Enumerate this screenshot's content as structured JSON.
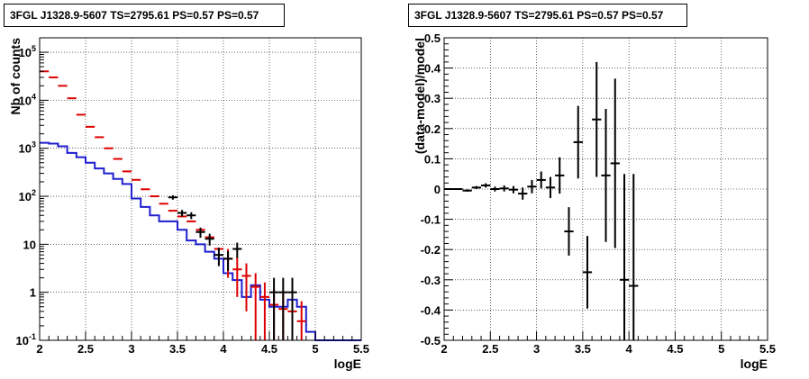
{
  "chart_data": [
    {
      "type": "histogram",
      "title": "3FGL J1328.9-5607 TS=2795.61 PS=0.57 PS=0.57",
      "xlabel": "logE",
      "ylabel": "Nb of counts",
      "xlim": [
        2,
        5.5
      ],
      "ylim": [
        0.1,
        200000
      ],
      "yscale": "log",
      "grid": true,
      "x_ticks": [
        "2",
        "2.5",
        "3",
        "3.5",
        "4",
        "4.5",
        "5",
        "5.5"
      ],
      "y_ticks": [
        {
          "value": 0.1,
          "base": "10",
          "exp": "-1"
        },
        {
          "value": 1,
          "label": "1"
        },
        {
          "value": 10,
          "label": "10"
        },
        {
          "value": 100,
          "base": "10",
          "exp": "2"
        },
        {
          "value": 1000,
          "base": "10",
          "exp": "3"
        },
        {
          "value": 10000,
          "base": "10",
          "exp": "4"
        },
        {
          "value": 100000,
          "base": "10",
          "exp": "5"
        }
      ],
      "bin_edges": [
        2.0,
        2.1,
        2.2,
        2.3,
        2.4,
        2.5,
        2.6,
        2.7,
        2.8,
        2.9,
        3.0,
        3.1,
        3.2,
        3.3,
        3.4,
        3.5,
        3.6,
        3.7,
        3.8,
        3.9,
        4.0,
        4.1,
        4.2,
        4.3,
        4.4,
        4.5,
        4.6,
        4.7,
        4.8,
        4.9,
        5.0,
        5.1,
        5.2,
        5.3,
        5.4,
        5.5
      ],
      "series": [
        {
          "color": "#1f1fcf",
          "style": "step",
          "values": [
            1300,
            1250,
            1100,
            800,
            650,
            500,
            380,
            300,
            230,
            180,
            90,
            60,
            40,
            30,
            30,
            20,
            12,
            10,
            7,
            5,
            2.5,
            1.8,
            0.8,
            1.4,
            0.7,
            0.5,
            0.5,
            0.7,
            0.5,
            0.15,
            0.1,
            0.1,
            0.1,
            0.1,
            0.1
          ]
        },
        {
          "color": "#dd0000",
          "style": "points-xerr-yerr",
          "points": [
            {
              "x": 2.05,
              "y": 40000,
              "e": 0
            },
            {
              "x": 2.15,
              "y": 30000,
              "e": 0
            },
            {
              "x": 2.25,
              "y": 20000,
              "e": 0
            },
            {
              "x": 2.35,
              "y": 11000,
              "e": 0
            },
            {
              "x": 2.45,
              "y": 5000,
              "e": 0
            },
            {
              "x": 2.55,
              "y": 2800,
              "e": 0
            },
            {
              "x": 2.65,
              "y": 1700,
              "e": 0
            },
            {
              "x": 2.75,
              "y": 1000,
              "e": 0
            },
            {
              "x": 2.85,
              "y": 600,
              "e": 0
            },
            {
              "x": 2.95,
              "y": 330,
              "e": 0
            },
            {
              "x": 3.05,
              "y": 220,
              "e": 0
            },
            {
              "x": 3.15,
              "y": 140,
              "e": 0
            },
            {
              "x": 3.25,
              "y": 100,
              "e": 0
            },
            {
              "x": 3.35,
              "y": 70,
              "e": 0
            },
            {
              "x": 3.45,
              "y": 50,
              "e": 0
            },
            {
              "x": 3.55,
              "y": 38,
              "e": 0
            },
            {
              "x": 3.65,
              "y": 30,
              "e": 0
            },
            {
              "x": 3.75,
              "y": 20,
              "e": 0
            },
            {
              "x": 3.85,
              "y": 14,
              "e": 0
            },
            {
              "x": 3.95,
              "y": 8,
              "e": 0
            },
            {
              "x": 4.05,
              "y": 5,
              "e": 3
            },
            {
              "x": 4.15,
              "y": 3,
              "e": 2.2
            },
            {
              "x": 4.25,
              "y": 2.2,
              "e": 1.8
            },
            {
              "x": 4.35,
              "y": 1.3,
              "e": 1.2
            },
            {
              "x": 4.45,
              "y": 0.8,
              "e": 0.8
            },
            {
              "x": 4.55,
              "y": 0.55,
              "e": 0.6
            },
            {
              "x": 4.65,
              "y": 0.45,
              "e": 0.55
            },
            {
              "x": 4.75,
              "y": 0.4,
              "e": 0.5
            },
            {
              "x": 4.85,
              "y": 0.25,
              "e": 0.4
            }
          ]
        },
        {
          "color": "#000000",
          "style": "points-xerr-yerr",
          "points": [
            {
              "x": 3.45,
              "y": 95,
              "e": 10
            },
            {
              "x": 3.55,
              "y": 45,
              "e": 7
            },
            {
              "x": 3.65,
              "y": 40,
              "e": 6.5
            },
            {
              "x": 3.75,
              "y": 18,
              "e": 4.3
            },
            {
              "x": 3.85,
              "y": 13,
              "e": 3.6
            },
            {
              "x": 3.95,
              "y": 6,
              "e": 2.5
            },
            {
              "x": 4.05,
              "y": 5,
              "e": 2.2
            },
            {
              "x": 4.15,
              "y": 8,
              "e": 2.8
            },
            {
              "x": 4.55,
              "y": 1,
              "e": 1
            },
            {
              "x": 4.65,
              "y": 1,
              "e": 1
            },
            {
              "x": 4.75,
              "y": 1,
              "e": 1
            }
          ]
        }
      ]
    },
    {
      "type": "scatter",
      "title": "3FGL J1328.9-5607 TS=2795.61 PS=0.57 PS=0.57",
      "xlabel": "logE",
      "ylabel": "(data-model)/model",
      "xlim": [
        2,
        5.5
      ],
      "ylim": [
        -0.5,
        0.5
      ],
      "grid": true,
      "x_ticks": [
        "2",
        "2.5",
        "3",
        "3.5",
        "4",
        "4.5",
        "5",
        "5.5"
      ],
      "y_ticks": [
        "-0.5",
        "-0.4",
        "-0.3",
        "-0.2",
        "-0.1",
        "0",
        "0.1",
        "0.2",
        "0.3",
        "0.4",
        "0.5"
      ],
      "points": [
        {
          "x": 2.05,
          "y": 0.0,
          "e": 0.003
        },
        {
          "x": 2.15,
          "y": 0.0,
          "e": 0.003
        },
        {
          "x": 2.25,
          "y": -0.005,
          "e": 0.004
        },
        {
          "x": 2.35,
          "y": 0.005,
          "e": 0.005
        },
        {
          "x": 2.45,
          "y": 0.012,
          "e": 0.007
        },
        {
          "x": 2.55,
          "y": 0.0,
          "e": 0.008
        },
        {
          "x": 2.65,
          "y": 0.002,
          "e": 0.01
        },
        {
          "x": 2.75,
          "y": -0.002,
          "e": 0.012
        },
        {
          "x": 2.85,
          "y": -0.015,
          "e": 0.02
        },
        {
          "x": 2.95,
          "y": 0.008,
          "e": 0.022
        },
        {
          "x": 3.05,
          "y": 0.03,
          "e": 0.028
        },
        {
          "x": 3.15,
          "y": 0.005,
          "e": 0.035
        },
        {
          "x": 3.25,
          "y": 0.045,
          "e": 0.06
        },
        {
          "x": 3.35,
          "y": -0.14,
          "e": 0.08
        },
        {
          "x": 3.45,
          "y": 0.155,
          "e": 0.12
        },
        {
          "x": 3.55,
          "y": -0.275,
          "e": 0.12
        },
        {
          "x": 3.65,
          "y": 0.23,
          "e": 0.19
        },
        {
          "x": 3.75,
          "y": 0.045,
          "e": 0.22
        },
        {
          "x": 3.85,
          "y": 0.085,
          "e": 0.28
        },
        {
          "x": 3.95,
          "y": -0.3,
          "e": 0.35
        },
        {
          "x": 4.05,
          "y": -0.32,
          "e": 0.37
        }
      ]
    }
  ]
}
